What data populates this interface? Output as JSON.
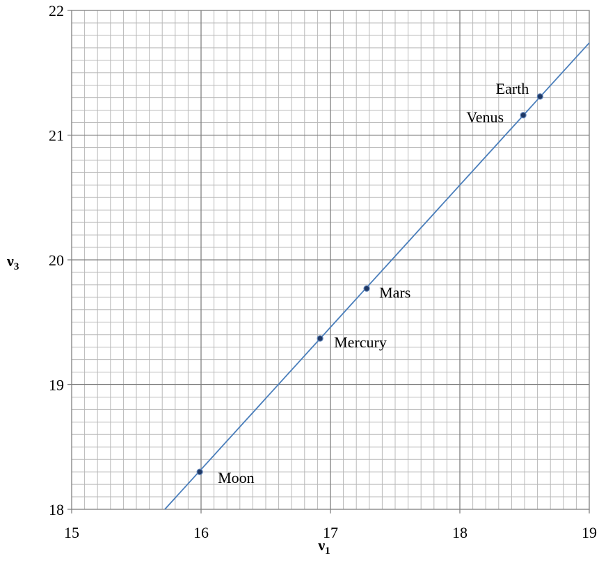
{
  "chart_data": {
    "type": "scatter",
    "title": "",
    "xlabel": "ν",
    "xlabel_sub": "1",
    "ylabel": "ν",
    "ylabel_sub": "3",
    "xlim": [
      15,
      19
    ],
    "ylim": [
      18,
      22
    ],
    "x_ticks": [
      "15",
      "16",
      "17",
      "18",
      "19"
    ],
    "y_ticks": [
      "18",
      "19",
      "20",
      "21",
      "22"
    ],
    "grid": true,
    "legend": "none",
    "series": [
      {
        "points": [
          {
            "label": "Moon",
            "x": 15.99,
            "y": 18.3
          },
          {
            "label": "Mercury",
            "x": 16.92,
            "y": 19.37
          },
          {
            "label": "Mars",
            "x": 17.28,
            "y": 19.77
          },
          {
            "label": "Venus",
            "x": 18.49,
            "y": 21.16
          },
          {
            "label": "Earth",
            "x": 18.62,
            "y": 21.31
          }
        ]
      }
    ],
    "trendline": {
      "x": [
        15.72,
        19.0
      ],
      "y": [
        18.0,
        21.74
      ]
    },
    "colors": {
      "line": "#4a7ebb",
      "point": "#1f3864",
      "grid_major": "#808080",
      "grid_minor": "#b8b8b8"
    }
  }
}
